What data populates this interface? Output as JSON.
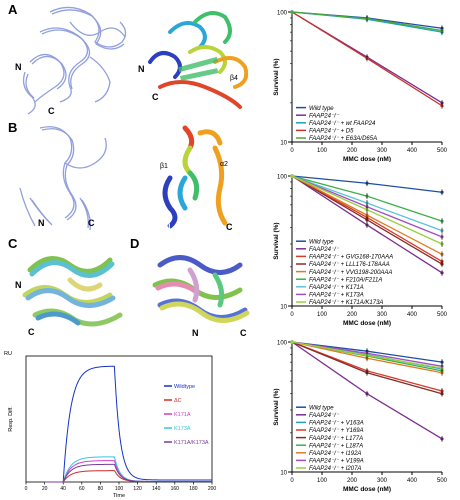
{
  "panel_labels": {
    "a": "A",
    "b": "B",
    "c": "C",
    "d": "D"
  },
  "structure_labels": {
    "a_left_n": "N",
    "a_left_c": "C",
    "a_right_n": "N",
    "a_right_c": "C",
    "a_right_b4": "β4",
    "b_left_n": "N",
    "b_left_c": "C",
    "b_right_a1": "α1",
    "b_right_a2": "α2",
    "b_right_b1": "β1",
    "b_right_n": "N",
    "b_right_c": "C",
    "c_n": "N",
    "c_c": "C",
    "d_n": "N",
    "d_c": "C"
  },
  "colors": {
    "wild_type": "#1f4ea3",
    "ko": "#7b2d8e",
    "blue_struct": "#7e8fd6",
    "rainbow": [
      "#2b3fbf",
      "#2aa7d8",
      "#3fbf6a",
      "#b9d43a",
      "#f0a020",
      "#e0452a"
    ]
  },
  "chart_data": [
    {
      "type": "line",
      "id": "spr",
      "ylabel_top": "RU",
      "ylabel": "Resp. Diff.",
      "xlabel": "Time",
      "xlim": [
        0,
        200
      ],
      "xticks": [
        0,
        20,
        40,
        60,
        80,
        100,
        120,
        140,
        160,
        180,
        200
      ],
      "ylim": [
        0,
        500
      ],
      "series": [
        {
          "name": "Wildtype",
          "color": "#1533c8",
          "peak": 460
        },
        {
          "name": "ΔC",
          "color": "#d02a2a",
          "peak": 45
        },
        {
          "name": "K171A",
          "color": "#d63cc8",
          "peak": 85
        },
        {
          "name": "K173A",
          "color": "#36c8d8",
          "peak": 100
        },
        {
          "name": "K171A/K173A",
          "color": "#7a3a9a",
          "peak": 70
        }
      ],
      "legend_labels": [
        "Wildtype",
        "ΔC",
        "K171A",
        "K173A",
        "K171A/K173A"
      ]
    },
    {
      "type": "line",
      "id": "surv1",
      "ylabel": "Survival (%)",
      "xlabel": "MMC dose (nM)",
      "log_y": true,
      "ylim": [
        10,
        100
      ],
      "y_tick_labels": [
        "10",
        "100"
      ],
      "x": [
        0,
        250,
        500
      ],
      "xticks": [
        0,
        100,
        200,
        300,
        400,
        500
      ],
      "series": [
        {
          "name": "Wild type",
          "color": "#1f4ea3",
          "values": [
            100,
            90,
            75
          ]
        },
        {
          "name": "FAAP24⁻/⁻",
          "color": "#7b2d8e",
          "values": [
            100,
            45,
            20
          ]
        },
        {
          "name": "FAAP24⁻/⁻ + wt FAAP24",
          "color": "#1aa3b8",
          "values": [
            100,
            88,
            70
          ]
        },
        {
          "name": "FAAP24⁻/⁻ + D5",
          "color": "#c8342a",
          "values": [
            100,
            44,
            19
          ]
        },
        {
          "name": "FAAP24⁻/⁻ + E63A/D65A",
          "color": "#4aa83c",
          "values": [
            100,
            89,
            72
          ]
        }
      ]
    },
    {
      "type": "line",
      "id": "surv2",
      "ylabel": "Survival (%)",
      "xlabel": "MMC dose (nM)",
      "log_y": true,
      "ylim": [
        10,
        100
      ],
      "y_tick_labels": [
        "10",
        "100"
      ],
      "x": [
        0,
        250,
        500
      ],
      "xticks": [
        0,
        100,
        200,
        300,
        400,
        500
      ],
      "series": [
        {
          "name": "Wild type",
          "color": "#1f4ea3",
          "values": [
            100,
            88,
            75
          ]
        },
        {
          "name": "FAAP24⁻/⁻",
          "color": "#7b2d8e",
          "values": [
            100,
            42,
            18
          ]
        },
        {
          "name": "FAAP24⁻/⁻ + GVG168-170AAA",
          "color": "#d63c2a",
          "values": [
            100,
            48,
            22
          ]
        },
        {
          "name": "FAAP24⁻/⁻ + LLL176-178AAA",
          "color": "#8a2a2a",
          "values": [
            100,
            46,
            21
          ]
        },
        {
          "name": "FAAP24⁻/⁻ + VVG198-200AAA",
          "color": "#e07a20",
          "values": [
            100,
            50,
            25
          ]
        },
        {
          "name": "FAAP24⁻/⁻ + F210A/F211A",
          "color": "#3cae4a",
          "values": [
            100,
            70,
            45
          ]
        },
        {
          "name": "FAAP24⁻/⁻ + K171A",
          "color": "#5cc2d8",
          "values": [
            100,
            62,
            38
          ]
        },
        {
          "name": "FAAP24⁻/⁻ + K173A",
          "color": "#a050c0",
          "values": [
            100,
            58,
            34
          ]
        },
        {
          "name": "FAAP24⁻/⁻ + K171A/K173A",
          "color": "#9ad040",
          "values": [
            100,
            55,
            30
          ]
        }
      ]
    },
    {
      "type": "line",
      "id": "surv3",
      "ylabel": "Survival (%)",
      "xlabel": "MMC dose (nM)",
      "log_y": true,
      "ylim": [
        10,
        100
      ],
      "y_tick_labels": [
        "10",
        "100"
      ],
      "x": [
        0,
        250,
        500
      ],
      "xticks": [
        0,
        100,
        200,
        300,
        400,
        500
      ],
      "series": [
        {
          "name": "Wild type",
          "color": "#1f4ea3",
          "values": [
            100,
            85,
            70
          ]
        },
        {
          "name": "FAAP24⁻/⁻",
          "color": "#7b2d8e",
          "values": [
            100,
            40,
            18
          ]
        },
        {
          "name": "FAAP24⁻/⁻ + V163A",
          "color": "#2aa3b8",
          "values": [
            100,
            80,
            62
          ]
        },
        {
          "name": "FAAP24⁻/⁻ + Y169A",
          "color": "#d63c2a",
          "values": [
            100,
            60,
            42
          ]
        },
        {
          "name": "FAAP24⁻/⁻ + L177A",
          "color": "#8a2a2a",
          "values": [
            100,
            58,
            40
          ]
        },
        {
          "name": "FAAP24⁻/⁻ + L187A",
          "color": "#3cae4a",
          "values": [
            100,
            78,
            60
          ]
        },
        {
          "name": "FAAP24⁻/⁻ + I192A",
          "color": "#e07a20",
          "values": [
            100,
            75,
            58
          ]
        },
        {
          "name": "FAAP24⁻/⁻ + V199A",
          "color": "#a050c0",
          "values": [
            100,
            82,
            65
          ]
        },
        {
          "name": "FAAP24⁻/⁻ + I207A",
          "color": "#9ad040",
          "values": [
            100,
            79,
            63
          ]
        }
      ]
    }
  ]
}
